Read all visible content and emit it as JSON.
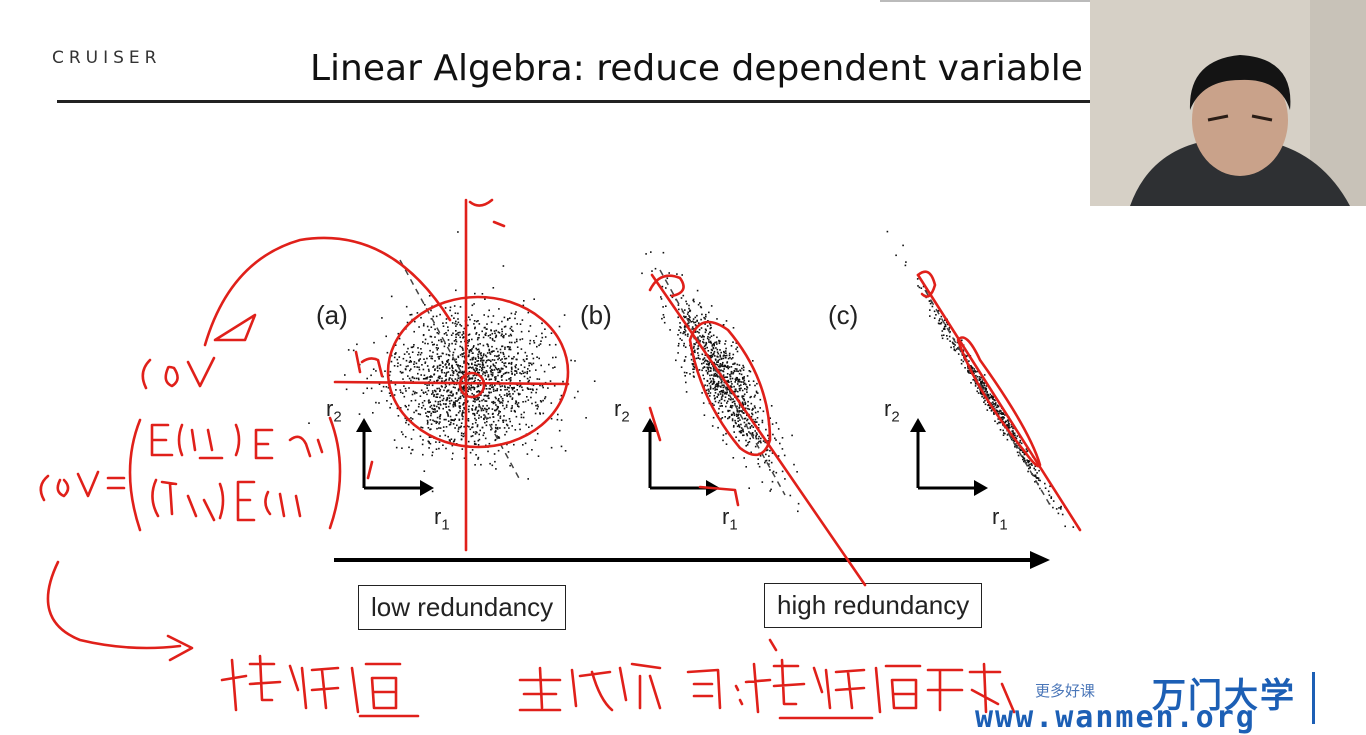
{
  "header": {
    "logo_text": "CRUISER",
    "title": "Linear Algebra: reduce dependent variable"
  },
  "figure": {
    "panels": [
      {
        "label": "(a)",
        "r2": "r",
        "r2_sub": "2",
        "r1": "r",
        "r1_sub": "1"
      },
      {
        "label": "(b)",
        "r2": "r",
        "r2_sub": "2",
        "r1": "r",
        "r1_sub": "1"
      },
      {
        "label": "(c)",
        "r2": "r",
        "r2_sub": "2",
        "r1": "r",
        "r1_sub": "1"
      }
    ],
    "low_label": "low redundancy",
    "high_label": "high redundancy"
  },
  "annotations": {
    "cov": "cov",
    "cov_eq": "cov=",
    "matrix_row1": "E(r₁r₁) E(r₁r₂)",
    "matrix_row2": "E(r₁r₂) E(r₂r₂)",
    "eigenvalue": "特征值",
    "principal_dir": "主成分方向：特征值最大的特征向量",
    "r1_mark": "r₁",
    "r2_mark": "r₂"
  },
  "watermark": {
    "tagline": "更多好课",
    "brand": "万门大学",
    "url": "www.wanmen.org"
  },
  "colors": {
    "ink": "#e0201a",
    "brand": "#1c5fb5"
  }
}
